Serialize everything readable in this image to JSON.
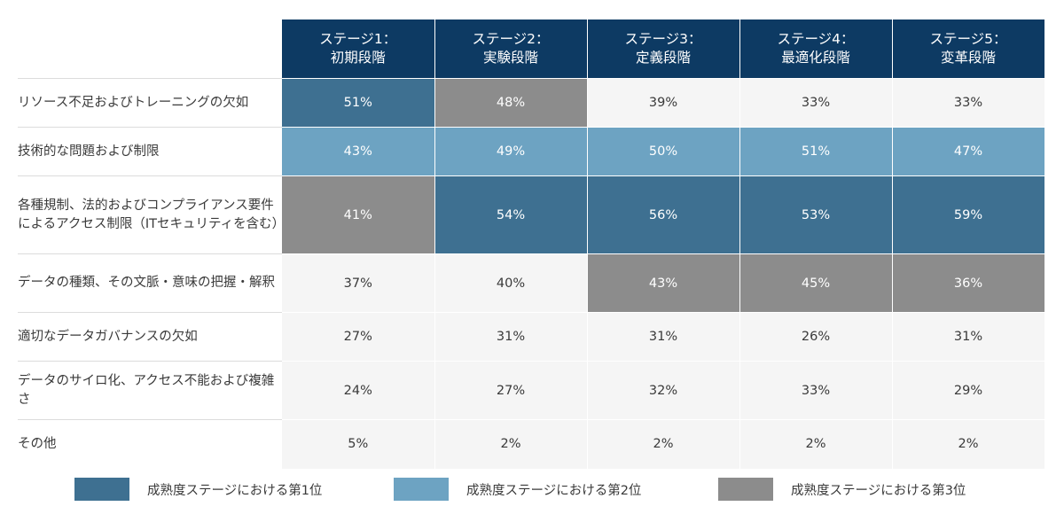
{
  "chart_data": {
    "type": "heatmap",
    "columns": [
      {
        "line1": "ステージ1：",
        "line2": "初期段階"
      },
      {
        "line1": "ステージ2：",
        "line2": "実験段階"
      },
      {
        "line1": "ステージ3：",
        "line2": "定義段階"
      },
      {
        "line1": "ステージ4：",
        "line2": "最適化段階"
      },
      {
        "line1": "ステージ5：",
        "line2": "変革段階"
      }
    ],
    "rows": [
      {
        "label": "リソース不足およびトレーニングの欠如",
        "values": [
          "51%",
          "48%",
          "39%",
          "33%",
          "33%"
        ],
        "ranks": [
          1,
          3,
          0,
          0,
          0
        ]
      },
      {
        "label": "技術的な問題および制限",
        "values": [
          "43%",
          "49%",
          "50%",
          "51%",
          "47%"
        ],
        "ranks": [
          2,
          2,
          2,
          2,
          2
        ]
      },
      {
        "label": "各種規制、法的およびコンプライアンス要件によるアクセス制限（ITセキュリティを含む）",
        "values": [
          "41%",
          "54%",
          "56%",
          "53%",
          "59%"
        ],
        "ranks": [
          3,
          1,
          1,
          1,
          1
        ]
      },
      {
        "label": "データの種類、その文脈・意味の把握・解釈",
        "values": [
          "37%",
          "40%",
          "43%",
          "45%",
          "36%"
        ],
        "ranks": [
          0,
          0,
          3,
          3,
          3
        ]
      },
      {
        "label": "適切なデータガバナンスの欠如",
        "values": [
          "27%",
          "31%",
          "31%",
          "26%",
          "31%"
        ],
        "ranks": [
          0,
          0,
          0,
          0,
          0
        ]
      },
      {
        "label": "データのサイロ化、アクセス不能および複雑さ",
        "values": [
          "24%",
          "27%",
          "32%",
          "33%",
          "29%"
        ],
        "ranks": [
          0,
          0,
          0,
          0,
          0
        ]
      },
      {
        "label": "その他",
        "values": [
          "5%",
          "2%",
          "2%",
          "2%",
          "2%"
        ],
        "ranks": [
          0,
          0,
          0,
          0,
          0
        ]
      }
    ],
    "legend": [
      {
        "label": "成熟度ステージにおける第1位",
        "color": "#3e7091"
      },
      {
        "label": "成熟度ステージにおける第2位",
        "color": "#6da3c2"
      },
      {
        "label": "成熟度ステージにおける第3位",
        "color": "#8c8c8c"
      }
    ],
    "colors": {
      "header": "#0d3a63",
      "neutral_cell": "#f5f5f5"
    }
  }
}
